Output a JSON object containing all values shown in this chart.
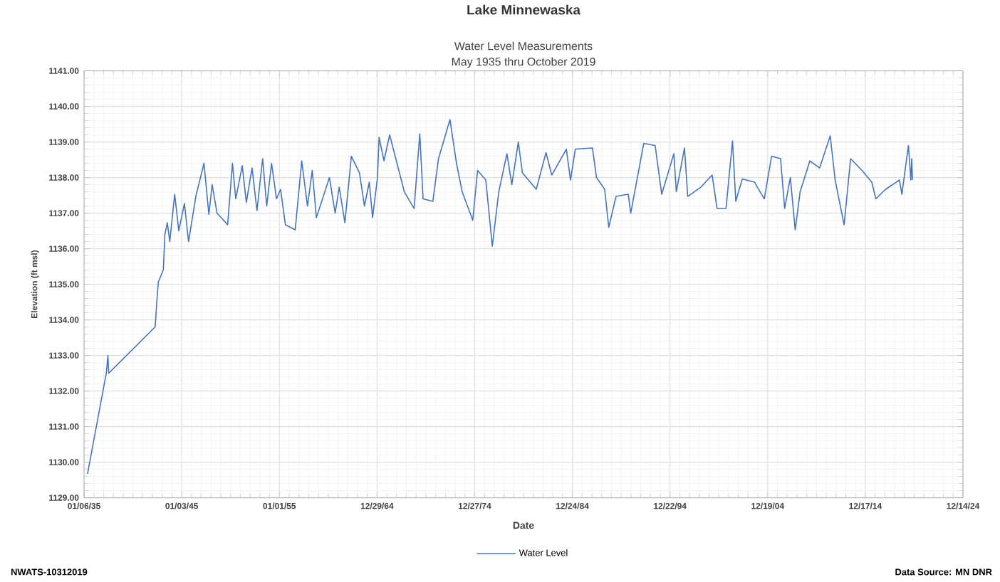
{
  "chart_data": {
    "type": "line",
    "title": "Lake Minnewaska",
    "subtitle": "Water Level Measurements",
    "xlabel": "Date",
    "ylabel": "Elevation (ft msl)",
    "annotations": [
      "May 1935 thru October 2019",
      "NWATS-10312019",
      "Data Source: MN DNR"
    ],
    "x": [
      "1935-05",
      "1937-04",
      "1937-06",
      "1937-07",
      "1942-04",
      "1942-05",
      "1942-06",
      "1942-08",
      "1943-02",
      "1943-04",
      "1943-07",
      "1943-10",
      "1944-04",
      "1944-09",
      "1945-04",
      "1945-09",
      "1946-06",
      "1947-04",
      "1947-10",
      "1948-02",
      "1948-08",
      "1949-09",
      "1950-03",
      "1950-07",
      "1951-03",
      "1951-08",
      "1952-03",
      "1952-09",
      "1953-04",
      "1953-09",
      "1954-03",
      "1954-09",
      "1955-02",
      "1955-08",
      "1956-08",
      "1957-04",
      "1957-11",
      "1958-05",
      "1958-10",
      "1960-02",
      "1960-09",
      "1961-02",
      "1961-09",
      "1962-05",
      "1963-03",
      "1963-09",
      "1964-03",
      "1964-07",
      "1965-01",
      "1965-03",
      "1965-09",
      "1966-04",
      "1967-10",
      "1968-10",
      "1969-05",
      "1969-09",
      "1970-09",
      "1971-04",
      "1972-06",
      "1973-02",
      "1973-09",
      "1974-10",
      "1975-04",
      "1976-02",
      "1976-10",
      "1977-06",
      "1978-04",
      "1978-10",
      "1979-06",
      "1979-11",
      "1981-04",
      "1982-04",
      "1982-11",
      "1984-05",
      "1984-10",
      "1985-04",
      "1987-01",
      "1987-06",
      "1988-04",
      "1988-09",
      "1989-06",
      "1990-09",
      "1990-12",
      "1992-04",
      "1993-06",
      "1994-02",
      "1995-05",
      "1995-08",
      "1996-06",
      "1996-10",
      "1998-02",
      "1999-04",
      "1999-10",
      "2000-09",
      "2001-05",
      "2001-09",
      "2002-05",
      "2003-08",
      "2004-08",
      "2005-05",
      "2006-04",
      "2006-09",
      "2007-04",
      "2007-10",
      "2008-04",
      "2009-04",
      "2010-04",
      "2011-05",
      "2011-11",
      "2012-10",
      "2013-06",
      "2014-08",
      "2015-08",
      "2016-01",
      "2017-01",
      "2018-06",
      "2018-09",
      "2019-05",
      "2019-08",
      "2019-09",
      "2019-10"
    ],
    "series": [
      {
        "name": "Water Level",
        "color": "#4472c4",
        "values": [
          1129.67,
          1132.5,
          1133.0,
          1132.5,
          1133.8,
          1134.13,
          1134.5,
          1135.07,
          1135.4,
          1136.4,
          1136.73,
          1136.2,
          1137.53,
          1136.5,
          1137.27,
          1136.2,
          1137.47,
          1138.4,
          1136.96,
          1137.8,
          1137.0,
          1136.67,
          1138.4,
          1137.4,
          1138.33,
          1137.3,
          1138.27,
          1137.07,
          1138.53,
          1137.2,
          1138.4,
          1137.4,
          1137.67,
          1136.67,
          1136.53,
          1138.47,
          1137.2,
          1138.2,
          1136.87,
          1138.0,
          1137.0,
          1137.73,
          1136.73,
          1138.6,
          1138.13,
          1137.2,
          1137.87,
          1136.87,
          1138.0,
          1139.13,
          1138.47,
          1139.2,
          1137.6,
          1137.13,
          1139.23,
          1137.4,
          1137.33,
          1138.53,
          1139.63,
          1138.4,
          1137.6,
          1136.8,
          1138.2,
          1137.93,
          1136.07,
          1137.6,
          1138.67,
          1137.8,
          1139.0,
          1138.13,
          1137.67,
          1138.7,
          1138.07,
          1138.8,
          1137.93,
          1138.8,
          1138.83,
          1138.0,
          1137.67,
          1136.6,
          1137.47,
          1137.53,
          1137.0,
          1138.96,
          1138.9,
          1137.53,
          1138.67,
          1137.6,
          1138.83,
          1137.47,
          1137.73,
          1138.07,
          1137.13,
          1137.13,
          1139.03,
          1137.33,
          1137.96,
          1137.87,
          1137.4,
          1138.6,
          1138.53,
          1137.13,
          1138.0,
          1136.53,
          1137.6,
          1138.47,
          1138.27,
          1139.17,
          1137.93,
          1136.67,
          1138.53,
          1138.2,
          1137.87,
          1137.4,
          1137.67,
          1137.93,
          1137.53,
          1138.9,
          1137.93,
          1138.53,
          1137.93
        ]
      }
    ],
    "xlim": [
      "1935-01-06",
      "2024-12-14"
    ],
    "xticks": [
      {
        "value": "1935-01-06",
        "label": "01/06/35"
      },
      {
        "value": "1945-01-03",
        "label": "01/03/45"
      },
      {
        "value": "1955-01-01",
        "label": "01/01/55"
      },
      {
        "value": "1964-12-29",
        "label": "12/29/64"
      },
      {
        "value": "1974-12-27",
        "label": "12/27/74"
      },
      {
        "value": "1984-12-24",
        "label": "12/24/84"
      },
      {
        "value": "1994-12-22",
        "label": "12/22/94"
      },
      {
        "value": "2004-12-19",
        "label": "12/19/04"
      },
      {
        "value": "2014-12-17",
        "label": "12/17/14"
      },
      {
        "value": "2024-12-14",
        "label": "12/14/24"
      }
    ],
    "ylim": [
      1129,
      1141
    ],
    "yticks": [
      {
        "value": 1129,
        "label": "1129.00"
      },
      {
        "value": 1130,
        "label": "1130.00"
      },
      {
        "value": 1131,
        "label": "1131.00"
      },
      {
        "value": 1132,
        "label": "1132.00"
      },
      {
        "value": 1133,
        "label": "1133.00"
      },
      {
        "value": 1134,
        "label": "1134.00"
      },
      {
        "value": 1135,
        "label": "1135.00"
      },
      {
        "value": 1136,
        "label": "1136.00"
      },
      {
        "value": 1137,
        "label": "1137.00"
      },
      {
        "value": 1138,
        "label": "1138.00"
      },
      {
        "value": 1139,
        "label": "1139.00"
      },
      {
        "value": 1140,
        "label": "1140.00"
      },
      {
        "value": 1141,
        "label": "1141.00"
      }
    ],
    "grid": true,
    "legend": "bottom",
    "marker": "none",
    "line_style": "solid"
  }
}
